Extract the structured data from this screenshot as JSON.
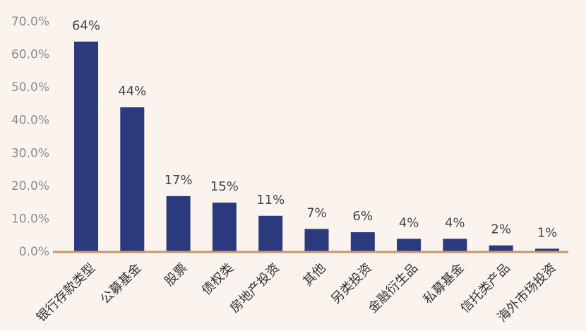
{
  "chart_data": {
    "type": "bar",
    "categories": [
      "银行存款类型",
      "公募基金",
      "股票",
      "债权类",
      "房地产投资",
      "其他",
      "另类投资",
      "金融衍生品",
      "私募基金",
      "信托类产品",
      "海外市场投资"
    ],
    "values": [
      64,
      44,
      17,
      15,
      11,
      7,
      6,
      4,
      4,
      2,
      1
    ],
    "value_labels": [
      "64%",
      "44%",
      "17%",
      "15%",
      "11%",
      "7%",
      "6%",
      "4%",
      "4%",
      "2%",
      "1%"
    ],
    "color": "#2b3a7c",
    "ylim": [
      0,
      70
    ],
    "yticks": [
      {
        "value": 0,
        "label": "0.0%"
      },
      {
        "value": 10,
        "label": "10.0%"
      },
      {
        "value": 20,
        "label": "20.0%"
      },
      {
        "value": 30,
        "label": "30.0%"
      },
      {
        "value": 40,
        "label": "40.0%"
      },
      {
        "value": 50,
        "label": "50.0%"
      },
      {
        "value": 60,
        "label": "60.0%"
      },
      {
        "value": 70,
        "label": "70.0%"
      }
    ],
    "grid": false
  }
}
